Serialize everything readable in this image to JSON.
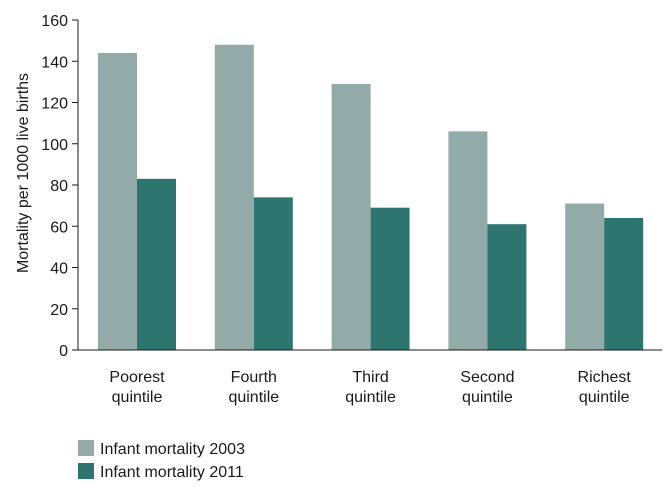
{
  "chart_data": {
    "type": "bar",
    "title": "",
    "xlabel": "",
    "ylabel": "Mortality per 1000 live births",
    "ylim": [
      0,
      160
    ],
    "yticks": [
      0,
      20,
      40,
      60,
      80,
      100,
      120,
      140,
      160
    ],
    "grid": false,
    "legend_position": "bottom-left",
    "categories": [
      [
        "Poorest",
        "quintile"
      ],
      [
        "Fourth",
        "quintile"
      ],
      [
        "Third",
        "quintile"
      ],
      [
        "Second",
        "quintile"
      ],
      [
        "Richest",
        "quintile"
      ]
    ],
    "series": [
      {
        "name": "Infant mortality 2003",
        "color": "#93aba8",
        "values": [
          144,
          148,
          129,
          106,
          71
        ]
      },
      {
        "name": "Infant mortality 2011",
        "color": "#2e7570",
        "values": [
          83,
          74,
          69,
          61,
          64
        ]
      }
    ]
  }
}
